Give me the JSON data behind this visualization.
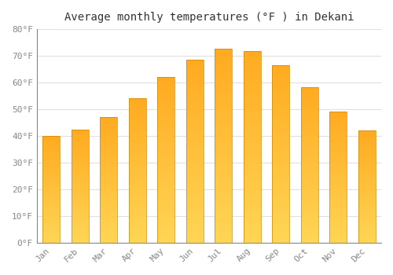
{
  "title": "Average monthly temperatures (°F ) in Dekani",
  "months": [
    "Jan",
    "Feb",
    "Mar",
    "Apr",
    "May",
    "Jun",
    "Jul",
    "Aug",
    "Sep",
    "Oct",
    "Nov",
    "Dec"
  ],
  "values": [
    40.1,
    42.3,
    47.1,
    54.0,
    62.1,
    68.4,
    72.7,
    71.8,
    66.5,
    58.2,
    49.0,
    42.1
  ],
  "bar_color_light": "#FFD555",
  "bar_color_dark": "#FFAA20",
  "bar_outline_color": "#CC8800",
  "background_color": "#FFFFFF",
  "grid_color": "#E0E0E0",
  "tick_label_color": "#888888",
  "title_color": "#333333",
  "ylim": [
    0,
    80
  ],
  "yticks": [
    0,
    10,
    20,
    30,
    40,
    50,
    60,
    70,
    80
  ],
  "figsize": [
    5.0,
    3.5
  ],
  "dpi": 100,
  "title_fontsize": 10,
  "tick_fontsize": 8,
  "font_family": "monospace"
}
